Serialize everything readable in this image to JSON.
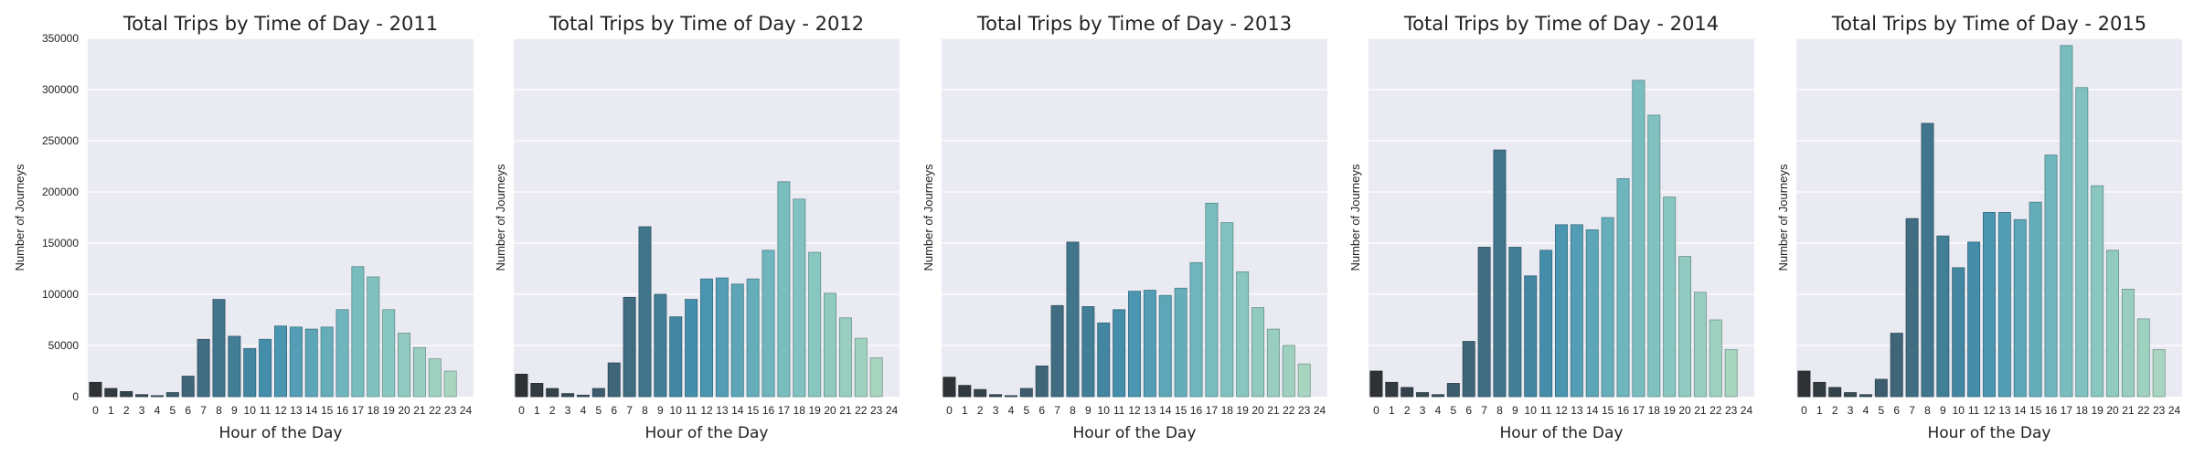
{
  "figure": {
    "palette": [
      "#2f3234",
      "#3e6375",
      "#4592b0",
      "#7bbfc0",
      "#a7d5c0"
    ],
    "axes_background": "#eaeaf2",
    "grid_color": "#ffffff",
    "text_color": "#222222"
  },
  "chart_data": [
    {
      "type": "bar",
      "title": "Total Trips by Time of Day - 2011",
      "xlabel": "Hour of the Day",
      "ylabel": "Number of Journeys",
      "ylim": [
        0,
        350000
      ],
      "yticks": [
        "0",
        "50000",
        "100000",
        "150000",
        "200000",
        "250000",
        "300000",
        "350000"
      ],
      "show_ytick_labels": true,
      "grid": true,
      "categories": [
        "0",
        "1",
        "2",
        "3",
        "4",
        "5",
        "6",
        "7",
        "8",
        "9",
        "10",
        "11",
        "12",
        "13",
        "14",
        "15",
        "16",
        "17",
        "18",
        "19",
        "20",
        "21",
        "22",
        "23",
        "24"
      ],
      "values": [
        14000,
        8000,
        5000,
        2000,
        1000,
        4000,
        20000,
        56000,
        95000,
        59000,
        47000,
        56000,
        69000,
        68000,
        66000,
        68000,
        85000,
        127000,
        117000,
        85000,
        62000,
        48000,
        37000,
        25000,
        null
      ]
    },
    {
      "type": "bar",
      "title": "Total Trips by Time of Day - 2012",
      "xlabel": "Hour of the Day",
      "ylabel": "Number of Journeys",
      "ylim": [
        0,
        350000
      ],
      "yticks": [
        "0",
        "50000",
        "100000",
        "150000",
        "200000",
        "250000",
        "300000",
        "350000"
      ],
      "show_ytick_labels": false,
      "grid": true,
      "categories": [
        "0",
        "1",
        "2",
        "3",
        "4",
        "5",
        "6",
        "7",
        "8",
        "9",
        "10",
        "11",
        "12",
        "13",
        "14",
        "15",
        "16",
        "17",
        "18",
        "19",
        "20",
        "21",
        "22",
        "23",
        "24"
      ],
      "values": [
        22000,
        13000,
        8000,
        3000,
        1500,
        8000,
        33000,
        97000,
        166000,
        100000,
        78000,
        95000,
        115000,
        116000,
        110000,
        115000,
        143000,
        210000,
        193000,
        141000,
        101000,
        77000,
        57000,
        38000,
        null
      ]
    },
    {
      "type": "bar",
      "title": "Total Trips by Time of Day - 2013",
      "xlabel": "Hour of the Day",
      "ylabel": "Number of Journeys",
      "ylim": [
        0,
        350000
      ],
      "yticks": [
        "0",
        "50000",
        "100000",
        "150000",
        "200000",
        "250000",
        "300000",
        "350000"
      ],
      "show_ytick_labels": false,
      "grid": true,
      "categories": [
        "0",
        "1",
        "2",
        "3",
        "4",
        "5",
        "6",
        "7",
        "8",
        "9",
        "10",
        "11",
        "12",
        "13",
        "14",
        "15",
        "16",
        "17",
        "18",
        "19",
        "20",
        "21",
        "22",
        "23",
        "24"
      ],
      "values": [
        19000,
        11000,
        7000,
        2000,
        1000,
        8000,
        30000,
        89000,
        151000,
        88000,
        72000,
        85000,
        103000,
        104000,
        99000,
        106000,
        131000,
        189000,
        170000,
        122000,
        87000,
        66000,
        50000,
        32000,
        null
      ]
    },
    {
      "type": "bar",
      "title": "Total Trips by Time of Day - 2014",
      "xlabel": "Hour of the Day",
      "ylabel": "Number of Journeys",
      "ylim": [
        0,
        350000
      ],
      "yticks": [
        "0",
        "50000",
        "100000",
        "150000",
        "200000",
        "250000",
        "300000",
        "350000"
      ],
      "show_ytick_labels": false,
      "grid": true,
      "categories": [
        "0",
        "1",
        "2",
        "3",
        "4",
        "5",
        "6",
        "7",
        "8",
        "9",
        "10",
        "11",
        "12",
        "13",
        "14",
        "15",
        "16",
        "17",
        "18",
        "19",
        "20",
        "21",
        "22",
        "23",
        "24"
      ],
      "values": [
        25000,
        14000,
        9000,
        4000,
        2000,
        13000,
        54000,
        146000,
        241000,
        146000,
        118000,
        143000,
        168000,
        168000,
        163000,
        175000,
        213000,
        309000,
        275000,
        195000,
        137000,
        102000,
        75000,
        46000,
        null
      ]
    },
    {
      "type": "bar",
      "title": "Total Trips by Time of Day - 2015",
      "xlabel": "Hour of the Day",
      "ylabel": "Number of Journeys",
      "ylim": [
        0,
        350000
      ],
      "yticks": [
        "0",
        "50000",
        "100000",
        "150000",
        "200000",
        "250000",
        "300000",
        "350000"
      ],
      "show_ytick_labels": false,
      "grid": true,
      "categories": [
        "0",
        "1",
        "2",
        "3",
        "4",
        "5",
        "6",
        "7",
        "8",
        "9",
        "10",
        "11",
        "12",
        "13",
        "14",
        "15",
        "16",
        "17",
        "18",
        "19",
        "20",
        "21",
        "22",
        "23",
        "24"
      ],
      "values": [
        25000,
        14000,
        9000,
        4000,
        2000,
        17000,
        62000,
        174000,
        267000,
        157000,
        126000,
        151000,
        180000,
        180000,
        173000,
        190000,
        236000,
        343000,
        302000,
        206000,
        143000,
        105000,
        76000,
        46000,
        null
      ]
    }
  ]
}
